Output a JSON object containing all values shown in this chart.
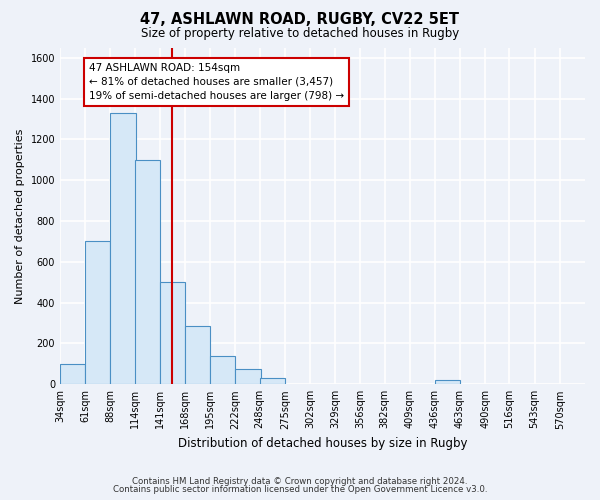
{
  "title": "47, ASHLAWN ROAD, RUGBY, CV22 5ET",
  "subtitle": "Size of property relative to detached houses in Rugby",
  "xlabel": "Distribution of detached houses by size in Rugby",
  "ylabel": "Number of detached properties",
  "bin_labels": [
    "34sqm",
    "61sqm",
    "88sqm",
    "114sqm",
    "141sqm",
    "168sqm",
    "195sqm",
    "222sqm",
    "248sqm",
    "275sqm",
    "302sqm",
    "329sqm",
    "356sqm",
    "382sqm",
    "409sqm",
    "436sqm",
    "463sqm",
    "490sqm",
    "516sqm",
    "543sqm",
    "570sqm"
  ],
  "bin_edges": [
    34,
    61,
    88,
    114,
    141,
    168,
    195,
    222,
    248,
    275,
    302,
    329,
    356,
    382,
    409,
    436,
    463,
    490,
    516,
    543,
    570
  ],
  "bar_heights": [
    100,
    700,
    1330,
    1100,
    500,
    285,
    140,
    75,
    30,
    0,
    0,
    0,
    0,
    0,
    0,
    20,
    0,
    0,
    0,
    0
  ],
  "bar_color": "#d6e8f7",
  "bar_edge_color": "#4a8fc4",
  "property_value": 154,
  "vline_color": "#cc0000",
  "annotation_title": "47 ASHLAWN ROAD: 154sqm",
  "annotation_line1": "← 81% of detached houses are smaller (3,457)",
  "annotation_line2": "19% of semi-detached houses are larger (798) →",
  "annotation_box_edge": "#cc0000",
  "ylim": [
    0,
    1650
  ],
  "yticks": [
    0,
    200,
    400,
    600,
    800,
    1000,
    1200,
    1400,
    1600
  ],
  "footnote1": "Contains HM Land Registry data © Crown copyright and database right 2024.",
  "footnote2": "Contains public sector information licensed under the Open Government Licence v3.0.",
  "bg_color": "#eef2f9",
  "plot_bg_color": "#eef2f9",
  "grid_color": "#ffffff"
}
